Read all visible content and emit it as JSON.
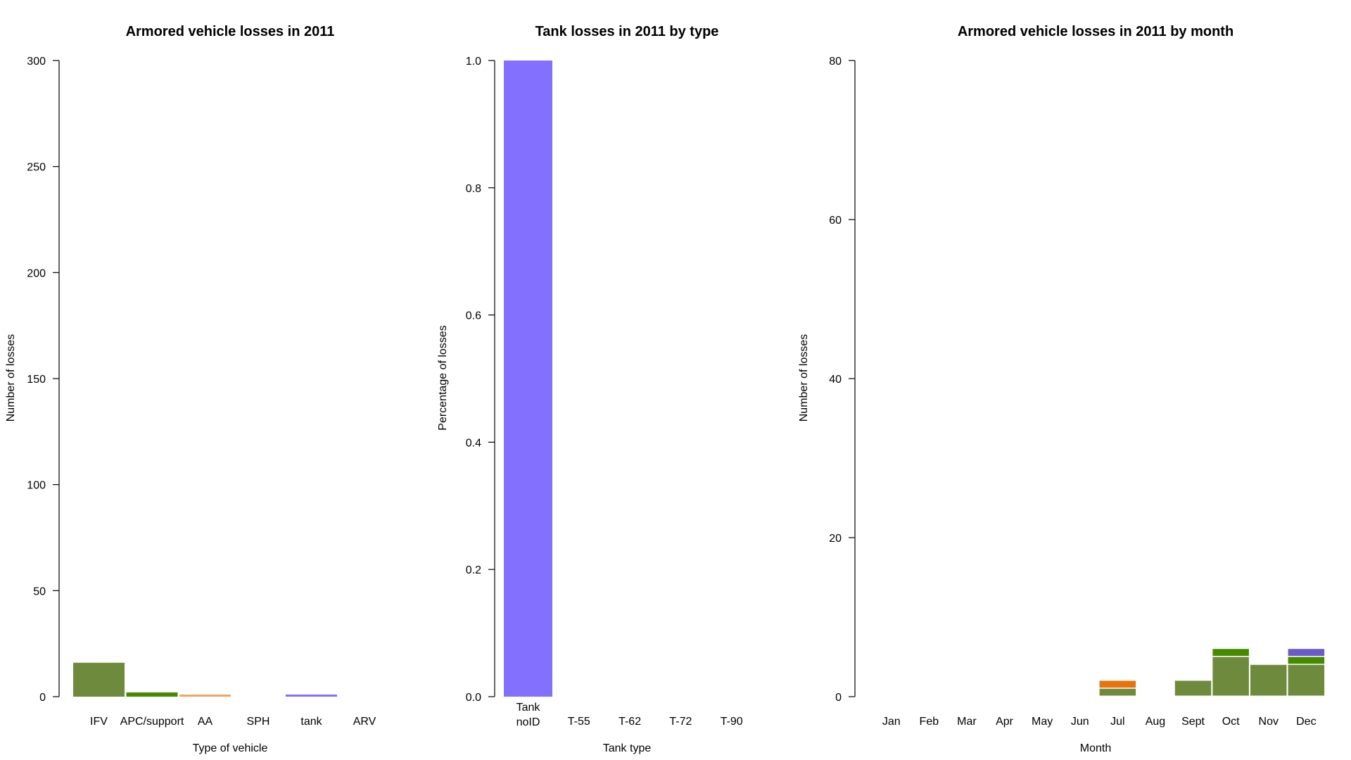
{
  "chart_data": [
    {
      "type": "bar",
      "title": "Armored vehicle losses in 2011",
      "xlabel": "Type of vehicle",
      "ylabel": "Number of losses",
      "ylim": [
        0,
        300
      ],
      "yticks": [
        "0",
        "50",
        "100",
        "150",
        "200",
        "250",
        "300"
      ],
      "categories": [
        "IFV",
        "APC/support",
        "AA",
        "SPH",
        "tank",
        "ARV"
      ],
      "values": [
        16,
        2,
        1,
        0,
        1,
        0
      ],
      "colors": [
        "#6e8b3d",
        "#458b00",
        "#f4a460",
        "#f4a460",
        "#8470ff",
        "#8470ff"
      ]
    },
    {
      "type": "bar",
      "title": "Tank losses in 2011 by type",
      "xlabel": "Tank type",
      "ylabel": "Percentage of losses",
      "ylim": [
        0,
        1
      ],
      "yticks": [
        "0.0",
        "0.2",
        "0.4",
        "0.6",
        "0.8",
        "1.0"
      ],
      "categories": [
        [
          "Tank",
          "noID"
        ],
        [
          "T-55"
        ],
        [
          "T-62"
        ],
        [
          "T-72"
        ],
        [
          "T-90"
        ]
      ],
      "values": [
        1.0,
        0,
        0,
        0,
        0
      ],
      "colors": [
        "#8470ff",
        "#8470ff",
        "#8470ff",
        "#8470ff",
        "#8470ff"
      ]
    },
    {
      "type": "bar",
      "stacked": true,
      "title": "Armored vehicle losses in 2011 by month",
      "xlabel": "Month",
      "ylabel": "Number of losses",
      "ylim": [
        0,
        80
      ],
      "yticks": [
        "0",
        "20",
        "40",
        "60",
        "80"
      ],
      "categories": [
        "Jan",
        "Feb",
        "Mar",
        "Apr",
        "May",
        "Jun",
        "Jul",
        "Aug",
        "Sept",
        "Oct",
        "Nov",
        "Dec"
      ],
      "series": [
        {
          "color": "#6e8b3d",
          "values": [
            0,
            0,
            0,
            0,
            0,
            0,
            1,
            0,
            2,
            5,
            4,
            4
          ]
        },
        {
          "color": "#458b00",
          "values": [
            0,
            0,
            0,
            0,
            0,
            0,
            0,
            0,
            0,
            1,
            0,
            1
          ]
        },
        {
          "color": "#e8730c",
          "values": [
            0,
            0,
            0,
            0,
            0,
            0,
            1,
            0,
            0,
            0,
            0,
            0
          ]
        },
        {
          "color": "#6a5acd",
          "values": [
            0,
            0,
            0,
            0,
            0,
            0,
            0,
            0,
            0,
            0,
            0,
            1
          ]
        }
      ]
    }
  ]
}
